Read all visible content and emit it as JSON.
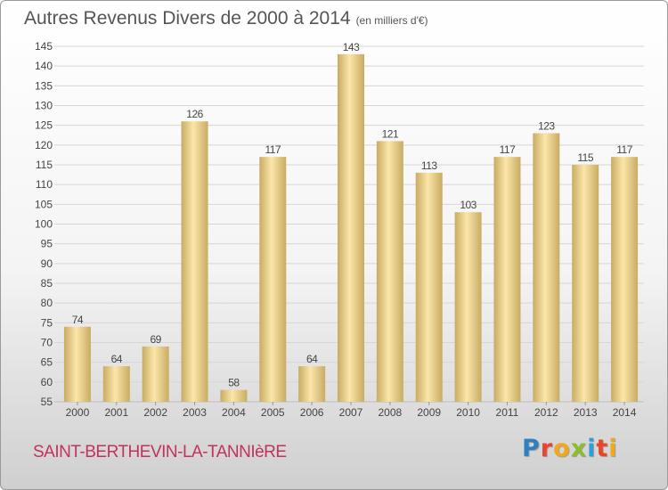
{
  "title": "Autres Revenus Divers de 2000 à 2014",
  "unit": "(en milliers d'€)",
  "city": "SAINT-BERTHEVIN-LA-TANNIèRE",
  "logo": {
    "text": "Proxiti",
    "letters": [
      {
        "ch": "P",
        "color": "#2f7fc1"
      },
      {
        "ch": "r",
        "color": "#e8452c"
      },
      {
        "ch": "o",
        "color": "#f0a81c"
      },
      {
        "ch": "x",
        "color": "#8bbd2e"
      },
      {
        "ch": "i",
        "color": "#2f9fd8"
      },
      {
        "ch": "t",
        "color": "#e8452c"
      },
      {
        "ch": "i",
        "color": "#f0a81c"
      }
    ]
  },
  "colors": {
    "bar_light": "#fbe6a9",
    "bar_dark": "#c9ab63",
    "grid": "#d6d6d6",
    "axis_text": "#444444",
    "title": "#555555",
    "city": "#c0335c"
  },
  "chart_data": {
    "type": "bar",
    "categories": [
      "2000",
      "2001",
      "2002",
      "2003",
      "2004",
      "2005",
      "2006",
      "2007",
      "2008",
      "2009",
      "2010",
      "2011",
      "2012",
      "2013",
      "2014"
    ],
    "values": [
      74,
      64,
      69,
      126,
      58,
      117,
      64,
      143,
      121,
      113,
      103,
      117,
      123,
      115,
      117
    ],
    "title": "Autres Revenus Divers de 2000 à 2014",
    "xlabel": "",
    "ylabel": "",
    "ylim": [
      55,
      145
    ],
    "yticks": [
      55,
      60,
      65,
      70,
      75,
      80,
      85,
      90,
      95,
      100,
      105,
      110,
      115,
      120,
      125,
      130,
      135,
      140,
      145
    ],
    "grid": true,
    "data_labels": true
  }
}
